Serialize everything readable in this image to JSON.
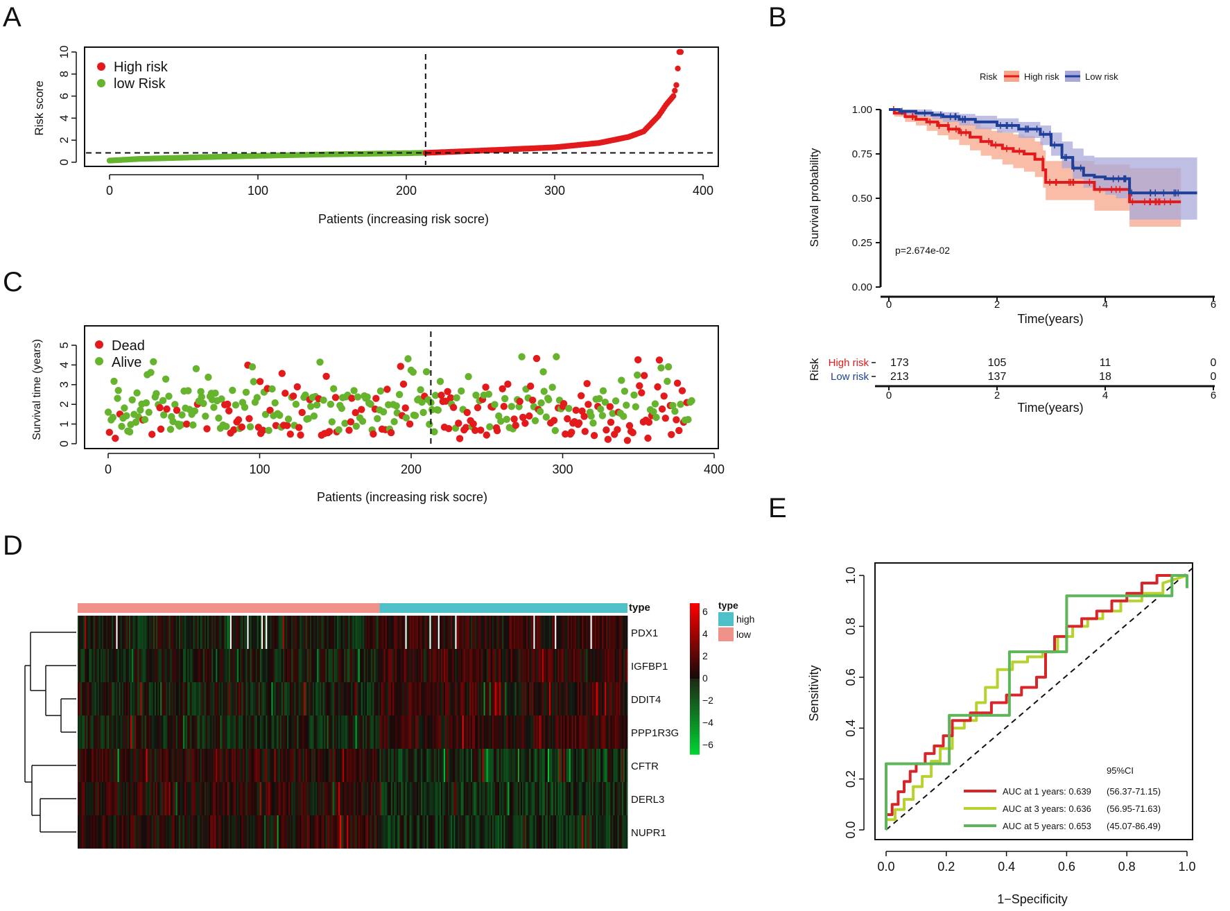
{
  "panels": {
    "A": "A",
    "B": "B",
    "C": "C",
    "D": "D",
    "E": "E"
  },
  "chart_data": [
    {
      "id": "A",
      "type": "scatter",
      "ylabel": "Risk score",
      "xlabel": "Patients (increasing risk socre)",
      "xlim": [
        0,
        400
      ],
      "ylim": [
        0,
        10
      ],
      "xticks": [
        "0",
        "100",
        "200",
        "300",
        "400"
      ],
      "yticks": [
        "0",
        "2",
        "4",
        "6",
        "8",
        "10"
      ],
      "cutoff_patient": 213,
      "cutoff_score": 0.85,
      "n_patients": 386,
      "legend_position": "top-left",
      "legend": [
        "High risk",
        "low Risk"
      ],
      "colors": {
        "high": "#e31a1c",
        "low": "#66b32e"
      },
      "risk_score_anchors": [
        [
          0,
          0.15
        ],
        [
          20,
          0.3
        ],
        [
          60,
          0.45
        ],
        [
          100,
          0.58
        ],
        [
          150,
          0.72
        ],
        [
          200,
          0.82
        ],
        [
          213,
          0.85
        ],
        [
          250,
          1.05
        ],
        [
          300,
          1.35
        ],
        [
          330,
          1.75
        ],
        [
          350,
          2.3
        ],
        [
          360,
          2.8
        ],
        [
          365,
          3.5
        ],
        [
          370,
          4.2
        ],
        [
          375,
          5.2
        ],
        [
          380,
          6.0
        ],
        [
          382,
          7.0
        ],
        [
          384,
          10.0
        ]
      ]
    },
    {
      "id": "B",
      "type": "line",
      "ylabel": "Survival probability",
      "xlabel": "Time(years)",
      "xlim": [
        0,
        6
      ],
      "ylim": [
        0,
        1
      ],
      "xticks": [
        "0",
        "2",
        "4",
        "6"
      ],
      "yticks": [
        "0.00",
        "0.25",
        "0.50",
        "0.75",
        "1.00"
      ],
      "legend_title": "Risk",
      "legend_position": "top",
      "pvalue": "p=2.674e-02",
      "series": [
        {
          "name": "High risk",
          "color": "#e31a1c",
          "fill": "#f6a68a",
          "x": [
            0,
            0.1,
            0.3,
            0.5,
            0.7,
            0.9,
            1.1,
            1.3,
            1.5,
            1.7,
            1.9,
            2.1,
            2.3,
            2.5,
            2.7,
            2.85,
            2.9,
            3.3,
            3.7,
            3.8,
            4.0,
            4.2,
            4.4,
            4.45,
            5.0,
            5.4
          ],
          "y": [
            1.0,
            0.98,
            0.96,
            0.945,
            0.93,
            0.91,
            0.89,
            0.87,
            0.845,
            0.82,
            0.8,
            0.78,
            0.765,
            0.75,
            0.72,
            0.66,
            0.59,
            0.59,
            0.59,
            0.55,
            0.55,
            0.55,
            0.55,
            0.48,
            0.48,
            0.48
          ],
          "lower": [
            1.0,
            0.96,
            0.93,
            0.91,
            0.88,
            0.855,
            0.83,
            0.8,
            0.77,
            0.74,
            0.72,
            0.69,
            0.67,
            0.65,
            0.62,
            0.56,
            0.49,
            0.49,
            0.49,
            0.43,
            0.43,
            0.43,
            0.43,
            0.34,
            0.34,
            0.34
          ],
          "upper": [
            1.0,
            1.0,
            0.99,
            0.98,
            0.97,
            0.96,
            0.95,
            0.94,
            0.92,
            0.9,
            0.88,
            0.87,
            0.86,
            0.85,
            0.82,
            0.77,
            0.71,
            0.71,
            0.71,
            0.69,
            0.69,
            0.69,
            0.69,
            0.67,
            0.67,
            0.67
          ]
        },
        {
          "name": "Low risk",
          "color": "#1f3f99",
          "fill": "#a9a9d9",
          "x": [
            0,
            0.2,
            0.5,
            0.8,
            1.0,
            1.3,
            1.6,
            2.0,
            2.4,
            2.8,
            3.0,
            3.2,
            3.4,
            3.6,
            3.8,
            4.0,
            4.2,
            4.4,
            4.45,
            5.0,
            5.7
          ],
          "y": [
            1.0,
            0.99,
            0.98,
            0.97,
            0.96,
            0.945,
            0.93,
            0.91,
            0.89,
            0.86,
            0.8,
            0.73,
            0.67,
            0.63,
            0.62,
            0.61,
            0.61,
            0.61,
            0.53,
            0.53,
            0.53
          ],
          "lower": [
            1.0,
            0.97,
            0.96,
            0.945,
            0.93,
            0.91,
            0.89,
            0.87,
            0.84,
            0.8,
            0.74,
            0.67,
            0.61,
            0.56,
            0.54,
            0.52,
            0.5,
            0.5,
            0.38,
            0.38,
            0.38
          ],
          "upper": [
            1.0,
            1.0,
            1.0,
            0.99,
            0.985,
            0.975,
            0.965,
            0.95,
            0.93,
            0.91,
            0.87,
            0.82,
            0.78,
            0.74,
            0.73,
            0.73,
            0.73,
            0.73,
            0.73,
            0.73,
            0.73
          ]
        }
      ],
      "risk_table": {
        "title": "Risk",
        "xlabel": "Time(years)",
        "xticks": [
          "0",
          "2",
          "4",
          "6"
        ],
        "rows": [
          {
            "label": "High risk",
            "color": "#e31a1c",
            "counts": [
              "173",
              "105",
              "11",
              "0"
            ]
          },
          {
            "label": "Low risk",
            "color": "#1f3f99",
            "counts": [
              "213",
              "137",
              "18",
              "0"
            ]
          }
        ]
      }
    },
    {
      "id": "C",
      "type": "scatter",
      "ylabel": "Survival time (years)",
      "xlabel": "Patients (increasing risk socre)",
      "xlim": [
        0,
        400
      ],
      "ylim": [
        0,
        5.5
      ],
      "xticks": [
        "0",
        "100",
        "200",
        "300",
        "400"
      ],
      "yticks": [
        "0",
        "1",
        "2",
        "3",
        "4",
        "5"
      ],
      "cutoff_patient": 213,
      "legend_position": "top-left",
      "legend": [
        "Dead",
        "Alive"
      ],
      "colors": {
        "dead": "#e31a1c",
        "alive": "#66b32e"
      },
      "n_patients": 386
    },
    {
      "id": "D",
      "type": "heatmap",
      "annotation_label": "type",
      "genes": [
        "PDX1",
        "IGFBP1",
        "DDIT4",
        "PPP1R3G",
        "CFTR",
        "DERL3",
        "NUPR1"
      ],
      "n_samples": 386,
      "colorbar_ticks": [
        "6",
        "4",
        "2",
        "0",
        "−2",
        "−4",
        "−6"
      ],
      "legend_title": "type",
      "legend": [
        {
          "label": "high",
          "color": "#4dc0c8"
        },
        {
          "label": "low",
          "color": "#f0928a"
        }
      ]
    },
    {
      "id": "E",
      "type": "line",
      "ylabel": "Sensitivity",
      "xlabel": "1−Specificity",
      "xlim": [
        0,
        1
      ],
      "ylim": [
        0,
        1
      ],
      "xticks": [
        "0.0",
        "0.2",
        "0.4",
        "0.6",
        "0.8",
        "1.0"
      ],
      "yticks": [
        "0.0",
        "0.2",
        "0.4",
        "0.6",
        "0.8",
        "1.0"
      ],
      "legend_title": "95%CI",
      "legend_position": "bottom-right",
      "series": [
        {
          "name": "AUC at 1 years: 0.639",
          "ci": "(56.37-71.15)",
          "color": "#d7262a",
          "x": [
            0,
            0,
            0.02,
            0.02,
            0.04,
            0.04,
            0.06,
            0.06,
            0.08,
            0.08,
            0.1,
            0.1,
            0.13,
            0.13,
            0.16,
            0.16,
            0.19,
            0.19,
            0.22,
            0.22,
            0.28,
            0.28,
            0.35,
            0.35,
            0.4,
            0.4,
            0.45,
            0.45,
            0.5,
            0.5,
            0.53,
            0.53,
            0.56,
            0.56,
            0.6,
            0.6,
            0.65,
            0.65,
            0.7,
            0.7,
            0.75,
            0.75,
            0.8,
            0.8,
            0.85,
            0.85,
            0.9,
            0.9,
            0.95,
            0.95,
            1.0
          ],
          "y": [
            0,
            0.06,
            0.06,
            0.1,
            0.1,
            0.15,
            0.15,
            0.19,
            0.19,
            0.23,
            0.23,
            0.26,
            0.26,
            0.3,
            0.3,
            0.33,
            0.33,
            0.37,
            0.37,
            0.43,
            0.43,
            0.46,
            0.46,
            0.5,
            0.5,
            0.53,
            0.53,
            0.56,
            0.56,
            0.6,
            0.6,
            0.7,
            0.7,
            0.76,
            0.76,
            0.8,
            0.8,
            0.83,
            0.83,
            0.86,
            0.86,
            0.9,
            0.9,
            0.93,
            0.93,
            0.97,
            0.97,
            1.0,
            1.0,
            1.0,
            1.0
          ]
        },
        {
          "name": "AUC at 3 years: 0.636",
          "ci": "(56.95-71.63)",
          "color": "#b7d22e",
          "x": [
            0,
            0,
            0.03,
            0.03,
            0.06,
            0.06,
            0.09,
            0.09,
            0.12,
            0.12,
            0.15,
            0.15,
            0.18,
            0.18,
            0.22,
            0.22,
            0.26,
            0.26,
            0.3,
            0.3,
            0.33,
            0.33,
            0.37,
            0.37,
            0.42,
            0.42,
            0.47,
            0.47,
            0.52,
            0.52,
            0.57,
            0.57,
            0.62,
            0.62,
            0.67,
            0.67,
            0.72,
            0.72,
            0.78,
            0.78,
            0.85,
            0.85,
            0.92,
            0.92,
            1.0
          ],
          "y": [
            0,
            0.04,
            0.04,
            0.08,
            0.08,
            0.12,
            0.12,
            0.17,
            0.17,
            0.21,
            0.21,
            0.27,
            0.27,
            0.32,
            0.32,
            0.4,
            0.4,
            0.43,
            0.43,
            0.5,
            0.5,
            0.56,
            0.56,
            0.63,
            0.63,
            0.66,
            0.66,
            0.68,
            0.68,
            0.7,
            0.7,
            0.76,
            0.76,
            0.8,
            0.8,
            0.83,
            0.83,
            0.86,
            0.86,
            0.9,
            0.9,
            0.93,
            0.93,
            0.97,
            1.0
          ]
        },
        {
          "name": "AUC at 5 years: 0.653",
          "ci": "(45.07-86.49)",
          "color": "#5fb55a",
          "x": [
            0,
            0,
            0.21,
            0.21,
            0.41,
            0.41,
            0.6,
            0.6,
            0.95,
            0.95,
            1.0,
            1.0
          ],
          "y": [
            0,
            0.26,
            0.26,
            0.45,
            0.45,
            0.7,
            0.7,
            0.92,
            0.92,
            1.0,
            1.0,
            0.95
          ]
        }
      ]
    }
  ]
}
